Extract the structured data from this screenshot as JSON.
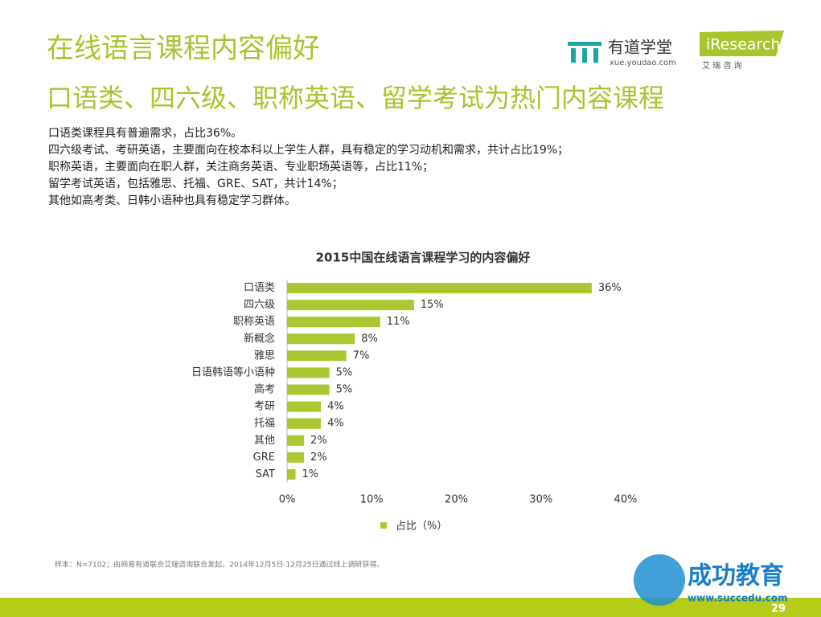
{
  "header": {
    "title": "在线语言课程内容偏好",
    "subtitle": "口语类、四六级、职称英语、留学考试为热门内容课程"
  },
  "logos": {
    "youdao": "有道学堂",
    "youdao_url": "xue.youdao.com",
    "iresearch": "iResearch",
    "iresearch_cn": "艾 瑞 咨 询"
  },
  "bullets": [
    "口语类课程具有普遍需求，占比36%。",
    "四六级考试、考研英语，主要面向在校本科以上学生人群，具有稳定的学习动机和需求，共计占比19%；",
    "职称英语，主要面向在职人群，关注商务英语、专业职场英语等，占比11%；",
    "留学考试英语，包括雅思、托福、GRE、SAT，共计14%；",
    "其他如高考类、日韩小语种也具有稳定学习群体。"
  ],
  "chart_data": {
    "type": "hbar",
    "title": "2015中国在线语言课程学习的内容偏好",
    "categories": [
      "口语类",
      "四六级",
      "职称英语",
      "新概念",
      "雅思",
      "日语韩语等小语种",
      "高考",
      "考研",
      "托福",
      "其他",
      "GRE",
      "SAT"
    ],
    "series": [
      {
        "name": "占比（%）",
        "color": "#a9c832",
        "values": [
          36,
          15,
          11,
          8,
          7,
          5,
          5,
          4,
          4,
          2,
          2,
          1
        ],
        "value_labels": [
          "36%",
          "15%",
          "11%",
          "8%",
          "7%",
          "5%",
          "5%",
          "4%",
          "4%",
          "2%",
          "2%",
          "1%"
        ]
      }
    ],
    "xlim": [
      0,
      40
    ],
    "xticks": [
      {
        "value": 0,
        "label": "0%"
      },
      {
        "value": 10,
        "label": "10%"
      },
      {
        "value": 20,
        "label": "20%"
      },
      {
        "value": 30,
        "label": "30%"
      },
      {
        "value": 40,
        "label": "40%"
      }
    ],
    "legend": "bottom"
  },
  "source": "样本：N=7102；由网易有道联合艾瑞咨询联合发起，2014年12月5日-12月25日通过线上调研获得。",
  "page_number": "29",
  "watermark": {
    "name": "成功教育",
    "url": "www.succedu.com"
  }
}
